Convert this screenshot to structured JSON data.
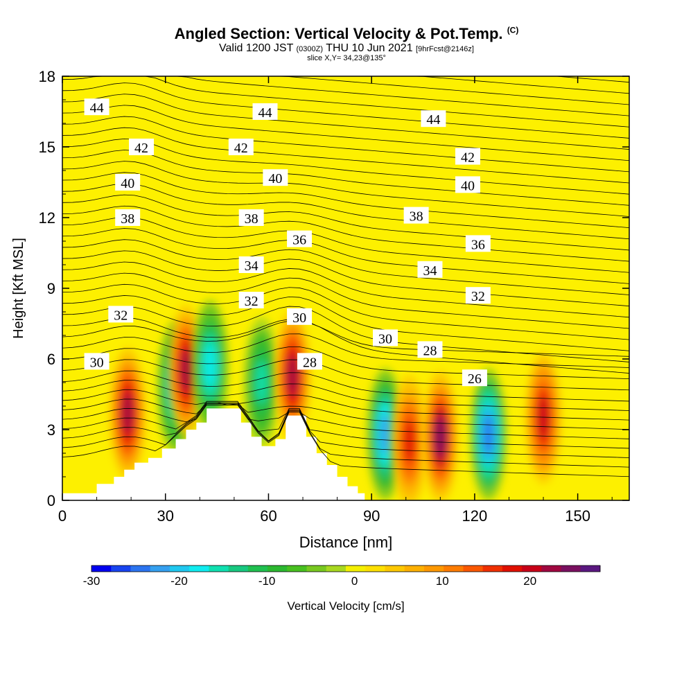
{
  "header": {
    "title": "Angled Section: Vertical Velocity & Pot.Temp.",
    "title_mark": "(C)",
    "valid_prefix": "Valid 1200 JST",
    "valid_z": "(0300Z)",
    "valid_date": "THU 10 Jun 2021",
    "valid_fcst": "[9hrFcst@2146z]",
    "slice": "slice X,Y= 34,23@135°"
  },
  "colors": {
    "background_field": "#fdf000",
    "terrain": "#ffffff",
    "contour": "#000000",
    "label_box": "#ffffff"
  },
  "chart_data": {
    "type": "heatmap",
    "title": "Angled Section: Vertical Velocity & Pot.Temp.",
    "xlabel": "Distance [nm]",
    "ylabel": "Height [Kft MSL]",
    "xlim": [
      0,
      165
    ],
    "ylim": [
      0,
      18
    ],
    "xticks": [
      0,
      30,
      60,
      90,
      120,
      150
    ],
    "yticks": [
      0,
      3,
      6,
      9,
      12,
      15,
      18
    ],
    "grid": false,
    "colorbar": {
      "label": "Vertical Velocity [cm/s]",
      "min": -30,
      "max": 28,
      "tick_labels": [
        "-30",
        "-20",
        "-10",
        "0",
        "10",
        "20"
      ],
      "tick_values": [
        -30,
        -20,
        -10,
        0,
        10,
        20
      ],
      "colors": [
        "#0000f0",
        "#1844f0",
        "#2c74f0",
        "#35a0f0",
        "#20c8f0",
        "#10ecf0",
        "#10e0b0",
        "#18c880",
        "#20c050",
        "#2cb830",
        "#48c020",
        "#78c820",
        "#a8d820",
        "#f4f000",
        "#fde000",
        "#fdc800",
        "#fdb000",
        "#fd9800",
        "#fd7c00",
        "#fa5800",
        "#f03000",
        "#e01000",
        "#c80018",
        "#a00840",
        "#7a1060",
        "#5a1880"
      ]
    },
    "velocity_features": [
      {
        "x": 19,
        "y": 3.7,
        "value": 22,
        "type": "updraft"
      },
      {
        "x": 33,
        "y": 4.8,
        "value": -20,
        "type": "downdraft"
      },
      {
        "x": 36,
        "y": 5.5,
        "value": 22,
        "type": "updraft"
      },
      {
        "x": 43,
        "y": 5.7,
        "value": -18,
        "type": "downdraft"
      },
      {
        "x": 58,
        "y": 5.0,
        "value": -15,
        "type": "downdraft"
      },
      {
        "x": 67,
        "y": 5.3,
        "value": 22,
        "type": "updraft"
      },
      {
        "x": 94,
        "y": 2.8,
        "value": -22,
        "type": "downdraft"
      },
      {
        "x": 101,
        "y": 2.5,
        "value": 18,
        "type": "updraft"
      },
      {
        "x": 110,
        "y": 2.7,
        "value": 24,
        "type": "updraft"
      },
      {
        "x": 124,
        "y": 2.8,
        "value": -25,
        "type": "downdraft"
      },
      {
        "x": 140,
        "y": 3.5,
        "value": 20,
        "type": "updraft"
      }
    ],
    "terrain_profile": {
      "x": [
        0,
        10,
        15,
        18,
        21,
        25,
        29,
        33,
        36,
        39,
        42,
        47,
        52,
        55,
        58,
        62,
        65,
        71,
        74,
        77,
        80,
        83,
        86,
        88
      ],
      "height": [
        0.3,
        0.7,
        1.0,
        1.3,
        1.6,
        1.8,
        2.2,
        2.6,
        3.0,
        3.3,
        3.9,
        3.9,
        3.3,
        2.7,
        2.3,
        2.6,
        3.6,
        2.7,
        2.0,
        1.5,
        1.0,
        0.6,
        0.3,
        0.0
      ]
    },
    "theta_levels": [
      26,
      28,
      30,
      32,
      34,
      36,
      38,
      40,
      42,
      44
    ],
    "theta_labels": [
      {
        "text": "44",
        "x": 10,
        "y": 16.7
      },
      {
        "text": "44",
        "x": 59,
        "y": 16.5
      },
      {
        "text": "44",
        "x": 108,
        "y": 16.2
      },
      {
        "text": "42",
        "x": 23,
        "y": 15.0
      },
      {
        "text": "42",
        "x": 52,
        "y": 15.0
      },
      {
        "text": "42",
        "x": 118,
        "y": 14.6
      },
      {
        "text": "40",
        "x": 19,
        "y": 13.5
      },
      {
        "text": "40",
        "x": 62,
        "y": 13.7
      },
      {
        "text": "40",
        "x": 118,
        "y": 13.4
      },
      {
        "text": "38",
        "x": 19,
        "y": 12.0
      },
      {
        "text": "38",
        "x": 55,
        "y": 12.0
      },
      {
        "text": "38",
        "x": 103,
        "y": 12.1
      },
      {
        "text": "36",
        "x": 69,
        "y": 11.1
      },
      {
        "text": "36",
        "x": 121,
        "y": 10.9
      },
      {
        "text": "34",
        "x": 55,
        "y": 10.0
      },
      {
        "text": "34",
        "x": 107,
        "y": 9.8
      },
      {
        "text": "32",
        "x": 17,
        "y": 7.9
      },
      {
        "text": "32",
        "x": 55,
        "y": 8.5
      },
      {
        "text": "32",
        "x": 121,
        "y": 8.7
      },
      {
        "text": "30",
        "x": 10,
        "y": 5.9
      },
      {
        "text": "30",
        "x": 69,
        "y": 7.8
      },
      {
        "text": "30",
        "x": 94,
        "y": 6.9
      },
      {
        "text": "28",
        "x": 72,
        "y": 5.9
      },
      {
        "text": "28",
        "x": 107,
        "y": 6.4
      },
      {
        "text": "26",
        "x": 120,
        "y": 5.2
      }
    ]
  }
}
